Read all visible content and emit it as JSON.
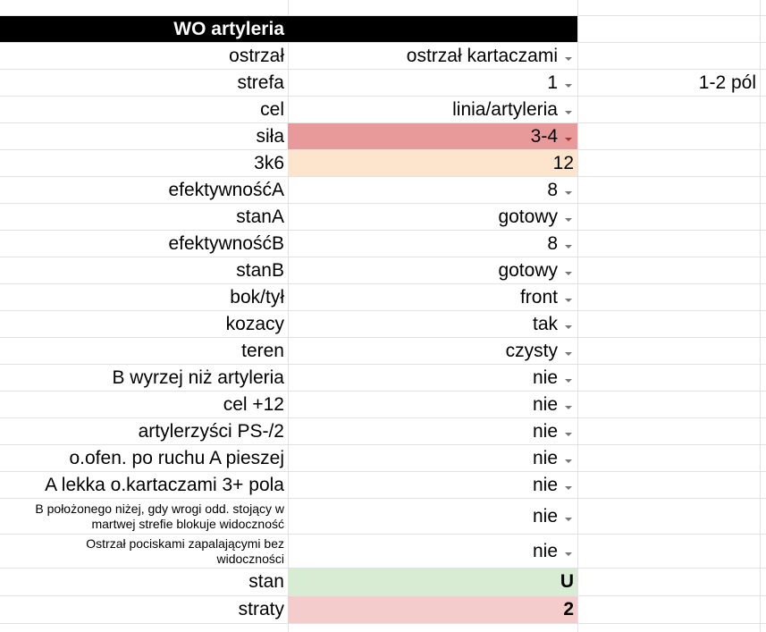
{
  "colors": {
    "header_bg": "#000000",
    "red_bg": "#e8999a",
    "peach_bg": "#fde4cd",
    "green_bg": "#d8ecd4",
    "pink_bg": "#f4cccc"
  },
  "title": "WO artyleria",
  "rows": [
    {
      "label": "ostrzał",
      "value": "ostrzał kartaczami",
      "dropdown": true
    },
    {
      "label": "strefa",
      "value": "1",
      "dropdown": true,
      "note": "1-2 pól"
    },
    {
      "label": "cel",
      "value": "linia/artyleria",
      "dropdown": true
    },
    {
      "label": "siła",
      "value": "3-4",
      "dropdown": true
    },
    {
      "label": "3k6",
      "value": "12",
      "dropdown": false
    },
    {
      "label": "efektywnośćA",
      "value": "8",
      "dropdown": true
    },
    {
      "label": "stanA",
      "value": "gotowy",
      "dropdown": true
    },
    {
      "label": "efektywnośćB",
      "value": "8",
      "dropdown": true
    },
    {
      "label": "stanB",
      "value": "gotowy",
      "dropdown": true
    },
    {
      "label": "bok/tył",
      "value": "front",
      "dropdown": true
    },
    {
      "label": "kozacy",
      "value": "tak",
      "dropdown": true
    },
    {
      "label": "teren",
      "value": "czysty",
      "dropdown": true
    },
    {
      "label": "B wyrzej niż artyleria",
      "value": "nie",
      "dropdown": true
    },
    {
      "label": "cel +12",
      "value": "nie",
      "dropdown": true
    },
    {
      "label": "artylerzyści PS-/2",
      "value": "nie",
      "dropdown": true
    },
    {
      "label": "o.ofen. po ruchu A pieszej",
      "value": "nie",
      "dropdown": true
    },
    {
      "label": "A lekka o.kartaczami 3+ pola",
      "value": "nie",
      "dropdown": true
    },
    {
      "label_lines": [
        "B położonego niżej, gdy wrogi odd. stojący w",
        "martwej strefie blokuje widoczność"
      ],
      "value": "nie",
      "dropdown": true
    },
    {
      "label_lines": [
        "Ostrzał pociskami zapalającymi bez",
        "widoczności"
      ],
      "value": "nie",
      "dropdown": true
    },
    {
      "label": "stan",
      "value": "U",
      "dropdown": false
    },
    {
      "label": "straty",
      "value": "2",
      "dropdown": false
    }
  ]
}
